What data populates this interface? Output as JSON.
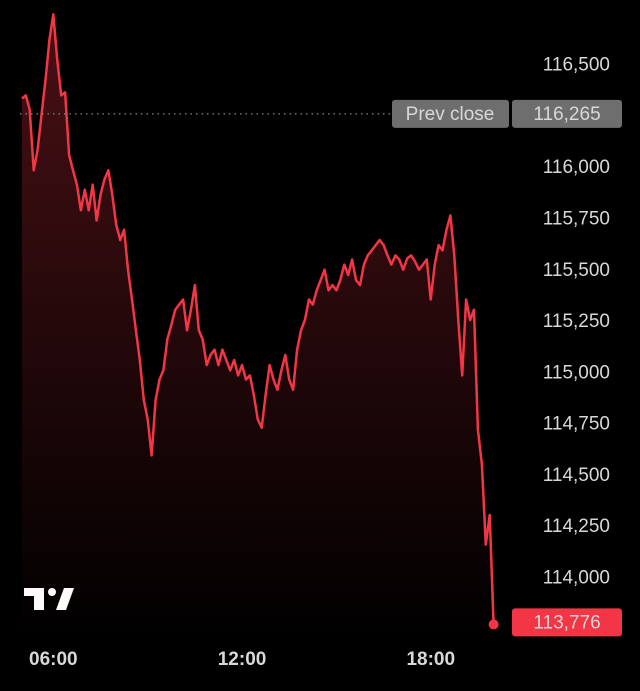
{
  "chart_data": {
    "type": "line",
    "x": [
      5,
      5.125,
      5.25,
      5.375,
      5.5,
      5.625,
      5.75,
      5.875,
      6,
      6.125,
      6.25,
      6.375,
      6.5,
      6.625,
      6.75,
      6.875,
      7,
      7.125,
      7.25,
      7.375,
      7.5,
      7.625,
      7.75,
      7.875,
      8,
      8.125,
      8.25,
      8.375,
      8.5,
      8.625,
      8.75,
      8.875,
      9,
      9.125,
      9.25,
      9.375,
      9.5,
      9.625,
      9.75,
      9.875,
      10,
      10.125,
      10.25,
      10.375,
      10.5,
      10.625,
      10.75,
      10.875,
      11,
      11.125,
      11.25,
      11.375,
      11.5,
      11.625,
      11.75,
      11.875,
      12,
      12.125,
      12.25,
      12.375,
      12.5,
      12.625,
      12.75,
      12.875,
      13,
      13.125,
      13.25,
      13.375,
      13.5,
      13.625,
      13.75,
      13.875,
      14,
      14.125,
      14.25,
      14.375,
      14.5,
      14.625,
      14.75,
      14.875,
      15,
      15.125,
      15.25,
      15.375,
      15.5,
      15.625,
      15.75,
      15.875,
      16,
      16.125,
      16.25,
      16.375,
      16.5,
      16.625,
      16.75,
      16.875,
      17,
      17.125,
      17.25,
      17.375,
      17.5,
      17.625,
      17.75,
      17.875,
      18,
      18.125,
      18.25,
      18.375,
      18.5,
      18.625,
      18.75,
      18.875,
      19,
      19.125,
      19.25,
      19.375,
      19.5,
      19.625,
      19.75,
      19.875,
      20
    ],
    "series": [
      {
        "color": "#f23645",
        "values": [
          116340,
          116355,
          116285,
          115990,
          116090,
          116260,
          116430,
          116625,
          116750,
          116525,
          116355,
          116370,
          116065,
          115990,
          115920,
          115795,
          115895,
          115795,
          115920,
          115745,
          115870,
          115945,
          115990,
          115870,
          115725,
          115650,
          115700,
          115505,
          115360,
          115210,
          115065,
          114870,
          114775,
          114600,
          114870,
          114970,
          115015,
          115165,
          115235,
          115310,
          115335,
          115360,
          115210,
          115310,
          115430,
          115210,
          115165,
          115040,
          115090,
          115115,
          115040,
          115115,
          115065,
          115015,
          115065,
          114990,
          115040,
          114970,
          114990,
          114895,
          114775,
          114735,
          114895,
          115040,
          114970,
          114920,
          115015,
          115090,
          114970,
          114920,
          115115,
          115210,
          115260,
          115360,
          115335,
          115405,
          115455,
          115505,
          115405,
          115430,
          115405,
          115455,
          115530,
          115480,
          115555,
          115455,
          115430,
          115530,
          115575,
          115600,
          115625,
          115650,
          115625,
          115575,
          115530,
          115575,
          115555,
          115505,
          115560,
          115575,
          115545,
          115505,
          115530,
          115555,
          115360,
          115530,
          115625,
          115600,
          115700,
          115770,
          115575,
          115260,
          114990,
          115360,
          115260,
          115310,
          114725,
          114555,
          114165,
          114310,
          113776
        ],
        "value_labels": [
          null,
          null,
          null,
          null,
          null,
          null,
          null,
          null,
          null,
          null,
          null,
          null,
          null,
          null,
          null,
          null,
          null,
          null,
          null,
          null,
          null,
          null,
          null,
          null,
          null,
          null,
          null,
          null,
          null,
          null,
          null,
          null,
          null,
          null,
          null,
          null,
          null,
          null,
          null,
          null,
          null,
          null,
          null,
          null,
          null,
          null,
          null,
          null,
          null,
          null,
          null,
          null,
          null,
          null,
          null,
          null,
          null,
          null,
          null,
          null,
          null,
          null,
          null,
          null,
          null,
          null,
          null,
          null,
          null,
          null,
          null,
          null,
          null,
          null,
          null,
          null,
          null,
          null,
          null,
          null,
          null,
          null,
          null,
          null,
          null,
          null,
          null,
          null,
          null,
          null,
          null,
          null,
          null,
          null,
          null,
          null,
          null,
          null,
          null,
          null,
          null,
          null,
          null,
          null,
          null,
          null,
          null,
          null,
          null,
          null,
          null,
          null,
          null,
          null,
          null,
          null,
          null,
          null,
          null,
          null,
          "113,776"
        ]
      }
    ],
    "prev_close": {
      "label": "Prev close",
      "value": 116265,
      "value_label": "116,265"
    },
    "xlim": [
      4.94,
      20.52
    ],
    "xticks": [
      {
        "value": 6,
        "label": "06:00"
      },
      {
        "value": 12,
        "label": "12:00"
      },
      {
        "value": 18,
        "label": "18:00"
      }
    ],
    "ylim": [
      113700,
      116820
    ],
    "yticks": [
      {
        "value": 114000,
        "label": "114,000"
      },
      {
        "value": 114250,
        "label": "114,250"
      },
      {
        "value": 114500,
        "label": "114,500"
      },
      {
        "value": 114750,
        "label": "114,750"
      },
      {
        "value": 115000,
        "label": "115,000"
      },
      {
        "value": 115250,
        "label": "115,250"
      },
      {
        "value": 115500,
        "label": "115,500"
      },
      {
        "value": 115750,
        "label": "115,750"
      },
      {
        "value": 116000,
        "label": "116,000"
      },
      {
        "value": 116500,
        "label": "116,500"
      }
    ]
  }
}
